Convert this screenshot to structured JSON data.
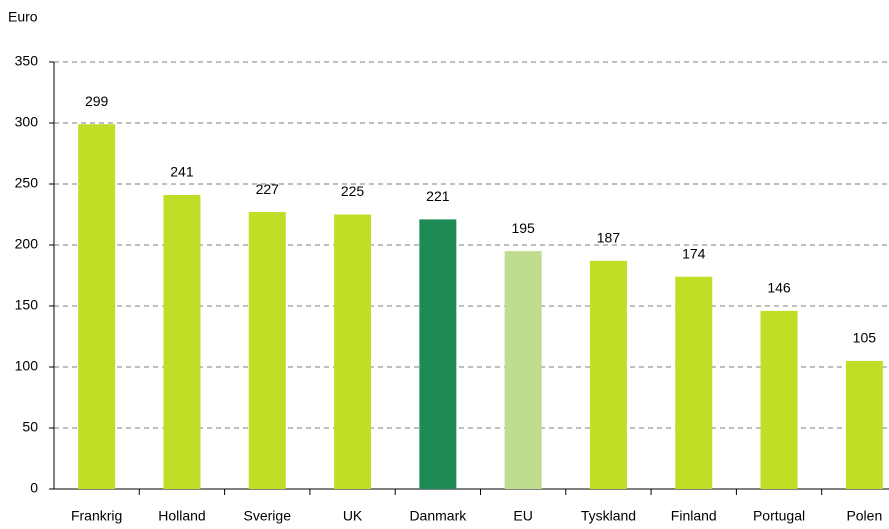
{
  "chart_data": {
    "type": "bar",
    "y_label": "Euro",
    "categories": [
      "Frankrig",
      "Holland",
      "Sverige",
      "UK",
      "Danmark",
      "EU",
      "Tyskland",
      "Finland",
      "Portugal",
      "Polen"
    ],
    "values": [
      299,
      241,
      227,
      225,
      221,
      195,
      187,
      174,
      146,
      105
    ],
    "colors": [
      "#bedf26",
      "#bedf26",
      "#bedf26",
      "#bedf26",
      "#1e8a55",
      "#bfdc90",
      "#bedf26",
      "#bedf26",
      "#bedf26",
      "#bedf26"
    ],
    "ylim": [
      0,
      350
    ],
    "yticks": [
      0,
      50,
      100,
      150,
      200,
      250,
      300,
      350
    ],
    "grid": true
  }
}
